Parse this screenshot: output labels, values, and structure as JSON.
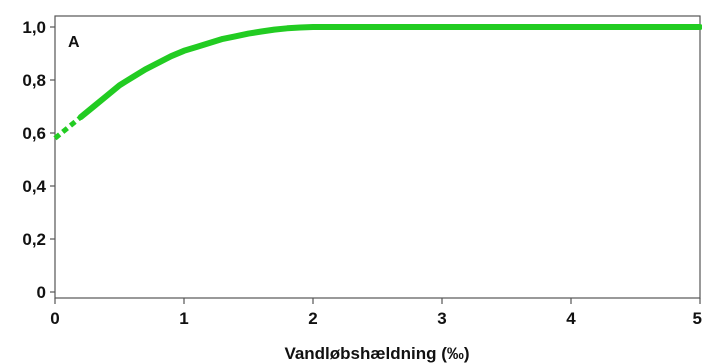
{
  "chart_data": {
    "type": "line",
    "panel_label": "A",
    "xlabel": "Vandløbshældning (‰)",
    "ylabel": "",
    "xlim": [
      0,
      5
    ],
    "ylim": [
      0,
      1.0
    ],
    "x_ticks": [
      0,
      1,
      2,
      3,
      4,
      5
    ],
    "x_tick_labels": [
      "0",
      "1",
      "2",
      "3",
      "4",
      "5"
    ],
    "y_ticks": [
      0,
      0.2,
      0.4,
      0.6,
      0.8,
      1.0
    ],
    "y_tick_labels": [
      "0",
      "0,2",
      "0,4",
      "0,6",
      "0,8",
      "1,0"
    ],
    "grid": false,
    "series": [
      {
        "color": "#22cc22",
        "x": [
          0.0,
          0.2,
          0.3,
          0.4,
          0.5,
          0.6,
          0.7,
          0.8,
          0.9,
          1.0,
          1.1,
          1.2,
          1.3,
          1.4,
          1.5,
          1.6,
          1.7,
          1.8,
          1.9,
          2.0,
          2.5,
          3.0,
          3.5,
          4.0,
          4.5,
          5.0
        ],
        "y": [
          0.58,
          0.66,
          0.7,
          0.74,
          0.78,
          0.81,
          0.84,
          0.865,
          0.89,
          0.91,
          0.925,
          0.94,
          0.955,
          0.965,
          0.975,
          0.983,
          0.99,
          0.995,
          0.998,
          1.0,
          1.0,
          1.0,
          1.0,
          1.0,
          1.0,
          1.0
        ],
        "dashed_until_x": 0.2
      }
    ]
  }
}
